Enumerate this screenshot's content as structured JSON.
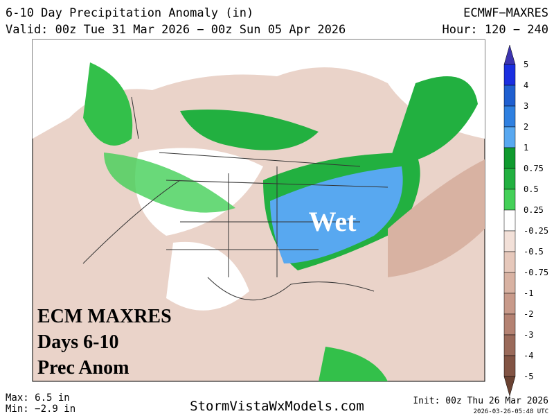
{
  "header": {
    "title": "6-10 Day Precipitation Anomaly (in)",
    "model": "ECMWF−MAXRES",
    "valid": "Valid: 00z Tue 31 Mar 2026 − 00z Sun 05 Apr 2026",
    "hour": "Hour: 120 − 240"
  },
  "map": {
    "annotation": "Wet",
    "overlay": [
      "ECM MAXRES",
      "Days 6-10",
      "Prec Anom"
    ]
  },
  "legend": {
    "labels": [
      "5",
      "4",
      "3",
      "2",
      "1",
      "0.75",
      "0.5",
      "0.25",
      "-0.25",
      "-0.5",
      "-0.75",
      "-1",
      "-2",
      "-3",
      "-4",
      "-5"
    ],
    "colors": [
      "#3c34b0",
      "#1a2fe0",
      "#1f5fd0",
      "#2f80e0",
      "#58a8f0",
      "#0f9a2e",
      "#22b040",
      "#44d058",
      "#ffffff",
      "#f2e0d8",
      "#e6c8bb",
      "#d8b2a2",
      "#c89a8a",
      "#b48272",
      "#9a6a5a",
      "#825444",
      "#6a4232"
    ]
  },
  "footer": {
    "max": "Max: 6.5 in",
    "min": "Min: −2.9 in",
    "site": "StormVistaWxModels.com",
    "init": "Init: 00z Thu 26 Mar 2026",
    "stamp": "2026-03-26-05:48 UTC"
  }
}
